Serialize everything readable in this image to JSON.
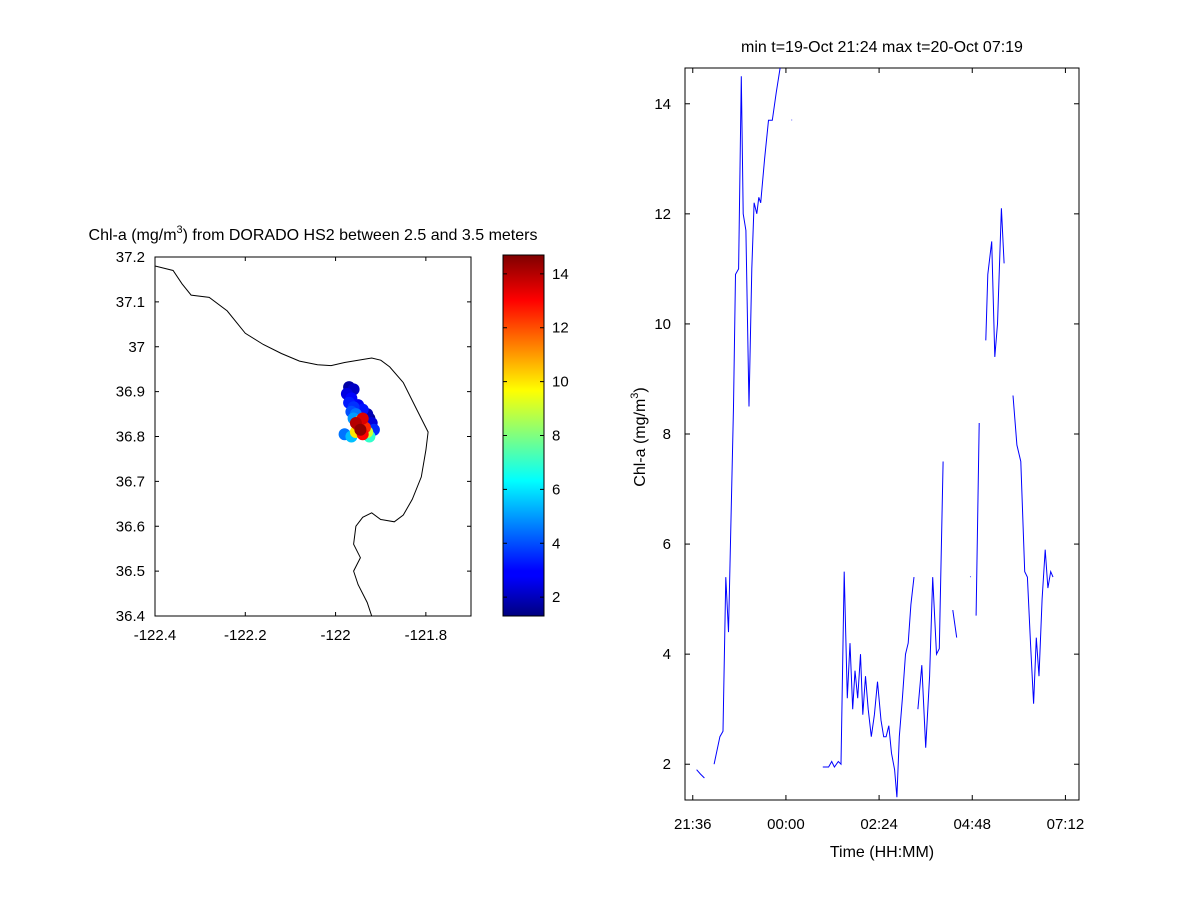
{
  "chart_data": [
    {
      "type": "scatter",
      "title_pre": "Chl-a (mg/m",
      "title_sup": "3",
      "title_post": ") from DORADO HS2 between 2.5 and 3.5 meters",
      "xlim": [
        -122.4,
        -121.7
      ],
      "ylim": [
        36.4,
        37.2
      ],
      "xticks": [
        "-122.4",
        "-122.2",
        "-122",
        "-121.8"
      ],
      "xtick_values": [
        -122.4,
        -122.2,
        -122.0,
        -121.8
      ],
      "yticks": [
        "36.4",
        "36.5",
        "36.6",
        "36.7",
        "36.8",
        "36.9",
        "37",
        "37.1",
        "37.2"
      ],
      "ytick_values": [
        36.4,
        36.5,
        36.6,
        36.7,
        36.8,
        36.9,
        37.0,
        37.1,
        37.2
      ],
      "coastline": [
        [
          -122.4,
          37.18
        ],
        [
          -122.36,
          37.17
        ],
        [
          -122.34,
          37.14
        ],
        [
          -122.32,
          37.115
        ],
        [
          -122.28,
          37.11
        ],
        [
          -122.24,
          37.08
        ],
        [
          -122.2,
          37.03
        ],
        [
          -122.16,
          37.005
        ],
        [
          -122.12,
          36.985
        ],
        [
          -122.08,
          36.968
        ],
        [
          -122.04,
          36.96
        ],
        [
          -122.01,
          36.958
        ],
        [
          -121.98,
          36.965
        ],
        [
          -121.95,
          36.97
        ],
        [
          -121.92,
          36.975
        ],
        [
          -121.9,
          36.97
        ],
        [
          -121.88,
          36.955
        ],
        [
          -121.85,
          36.92
        ],
        [
          -121.82,
          36.86
        ],
        [
          -121.795,
          36.81
        ],
        [
          -121.8,
          36.77
        ],
        [
          -121.81,
          36.71
        ],
        [
          -121.83,
          36.66
        ],
        [
          -121.85,
          36.625
        ],
        [
          -121.87,
          36.61
        ],
        [
          -121.9,
          36.615
        ],
        [
          -121.92,
          36.63
        ],
        [
          -121.94,
          36.62
        ],
        [
          -121.955,
          36.6
        ],
        [
          -121.96,
          36.56
        ],
        [
          -121.945,
          36.53
        ],
        [
          -121.96,
          36.5
        ],
        [
          -121.95,
          36.47
        ],
        [
          -121.93,
          36.43
        ],
        [
          -121.92,
          36.4
        ]
      ],
      "points": [
        [
          -121.97,
          36.91,
          1.8
        ],
        [
          -121.96,
          36.905,
          2.2
        ],
        [
          -121.975,
          36.895,
          2.6
        ],
        [
          -121.965,
          36.885,
          3.0
        ],
        [
          -121.97,
          36.875,
          3.3
        ],
        [
          -121.96,
          36.865,
          3.6
        ],
        [
          -121.965,
          36.855,
          4.0
        ],
        [
          -121.955,
          36.85,
          4.5
        ],
        [
          -121.96,
          36.84,
          5.0
        ],
        [
          -121.98,
          36.805,
          4.5
        ],
        [
          -121.965,
          36.8,
          5.5
        ],
        [
          -121.955,
          36.81,
          10.0
        ],
        [
          -121.95,
          36.825,
          12.0
        ],
        [
          -121.945,
          36.815,
          14.5
        ],
        [
          -121.94,
          36.805,
          13.0
        ],
        [
          -121.935,
          36.82,
          12.5
        ],
        [
          -121.93,
          36.81,
          9.0
        ],
        [
          -121.925,
          36.8,
          7.0
        ],
        [
          -121.93,
          36.85,
          2.0
        ],
        [
          -121.925,
          36.84,
          1.5
        ],
        [
          -121.92,
          36.83,
          2.5
        ],
        [
          -121.915,
          36.815,
          3.5
        ],
        [
          -121.945,
          36.835,
          11.0
        ],
        [
          -121.955,
          36.83,
          14.0
        ],
        [
          -121.94,
          36.84,
          13.5
        ],
        [
          -121.95,
          36.87,
          2.8
        ],
        [
          -121.94,
          36.86,
          3.2
        ]
      ],
      "colorbar": {
        "min": 1.3,
        "max": 14.7,
        "ticks": [
          "2",
          "4",
          "6",
          "8",
          "10",
          "12",
          "14"
        ],
        "tick_values": [
          2,
          4,
          6,
          8,
          10,
          12,
          14
        ]
      }
    },
    {
      "type": "line",
      "title": "min t=19-Oct 21:24 max t=20-Oct 07:19",
      "xlabel": "Time (HH:MM)",
      "ylabel_pre": "Chl-a (mg/m",
      "ylabel_sup": "3",
      "ylabel_post": ")",
      "xlim_hours": [
        -2.6,
        7.55
      ],
      "ylim": [
        1.35,
        14.65
      ],
      "xticks": [
        "21:36",
        "00:00",
        "02:24",
        "04:48",
        "07:12"
      ],
      "xtick_hours": [
        -2.4,
        0.0,
        2.4,
        4.8,
        7.2
      ],
      "yticks": [
        "2",
        "4",
        "6",
        "8",
        "10",
        "12",
        "14"
      ],
      "ytick_values": [
        2,
        4,
        6,
        8,
        10,
        12,
        14
      ],
      "segments": [
        [
          [
            -2.3,
            1.9
          ],
          [
            -2.2,
            1.82
          ],
          [
            -2.1,
            1.75
          ]
        ],
        [
          [
            -1.85,
            2.0
          ],
          [
            -1.7,
            2.5
          ],
          [
            -1.62,
            2.6
          ],
          [
            -1.55,
            5.4
          ],
          [
            -1.48,
            4.4
          ],
          [
            -1.35,
            8.5
          ],
          [
            -1.3,
            10.9
          ],
          [
            -1.22,
            11.0
          ],
          [
            -1.15,
            14.5
          ],
          [
            -1.1,
            12.0
          ],
          [
            -1.03,
            11.7
          ],
          [
            -0.95,
            8.5
          ],
          [
            -0.88,
            11.0
          ],
          [
            -0.82,
            12.2
          ],
          [
            -0.75,
            12.0
          ],
          [
            -0.7,
            12.3
          ],
          [
            -0.65,
            12.2
          ],
          [
            -0.55,
            13.0
          ],
          [
            -0.45,
            13.7
          ],
          [
            -0.35,
            13.7
          ],
          [
            -0.25,
            14.2
          ],
          [
            -0.15,
            14.65
          ]
        ],
        [
          [
            0.15,
            13.7
          ],
          [
            0.15,
            13.71
          ]
        ],
        [
          [
            0.95,
            1.95
          ],
          [
            1.1,
            1.95
          ],
          [
            1.18,
            2.05
          ],
          [
            1.25,
            1.95
          ],
          [
            1.35,
            2.05
          ],
          [
            1.42,
            2.0
          ],
          [
            1.5,
            5.5
          ],
          [
            1.58,
            3.2
          ],
          [
            1.65,
            4.2
          ],
          [
            1.72,
            3.0
          ],
          [
            1.78,
            3.7
          ],
          [
            1.85,
            3.2
          ],
          [
            1.92,
            4.0
          ],
          [
            1.98,
            2.9
          ],
          [
            2.05,
            3.6
          ],
          [
            2.12,
            3.0
          ],
          [
            2.2,
            2.5
          ],
          [
            2.28,
            2.9
          ],
          [
            2.36,
            3.5
          ],
          [
            2.45,
            2.8
          ],
          [
            2.52,
            2.5
          ],
          [
            2.58,
            2.5
          ],
          [
            2.65,
            2.7
          ],
          [
            2.72,
            2.2
          ],
          [
            2.8,
            1.9
          ],
          [
            2.86,
            1.4
          ],
          [
            2.92,
            2.5
          ],
          [
            3.0,
            3.2
          ],
          [
            3.08,
            4.0
          ],
          [
            3.15,
            4.2
          ],
          [
            3.22,
            4.9
          ],
          [
            3.3,
            5.4
          ]
        ],
        [
          [
            3.4,
            3.0
          ],
          [
            3.5,
            3.8
          ],
          [
            3.6,
            2.3
          ],
          [
            3.7,
            3.6
          ],
          [
            3.78,
            5.4
          ],
          [
            3.88,
            4.0
          ],
          [
            3.95,
            4.1
          ],
          [
            4.05,
            7.5
          ]
        ],
        [
          [
            4.3,
            4.8
          ],
          [
            4.4,
            4.3
          ]
        ],
        [
          [
            4.75,
            5.4
          ],
          [
            4.76,
            5.41
          ]
        ],
        [
          [
            4.9,
            4.7
          ],
          [
            4.98,
            8.2
          ]
        ],
        [
          [
            5.15,
            9.7
          ],
          [
            5.2,
            10.9
          ],
          [
            5.3,
            11.5
          ],
          [
            5.38,
            9.4
          ],
          [
            5.45,
            10.0
          ],
          [
            5.55,
            12.1
          ],
          [
            5.62,
            11.1
          ]
        ],
        [
          [
            5.85,
            8.7
          ],
          [
            5.95,
            7.8
          ],
          [
            6.05,
            7.5
          ],
          [
            6.15,
            5.5
          ],
          [
            6.22,
            5.4
          ],
          [
            6.3,
            4.2
          ],
          [
            6.38,
            3.1
          ],
          [
            6.45,
            4.3
          ],
          [
            6.52,
            3.6
          ],
          [
            6.6,
            5.0
          ],
          [
            6.68,
            5.9
          ],
          [
            6.75,
            5.2
          ],
          [
            6.82,
            5.5
          ],
          [
            6.88,
            5.4
          ]
        ]
      ]
    }
  ]
}
